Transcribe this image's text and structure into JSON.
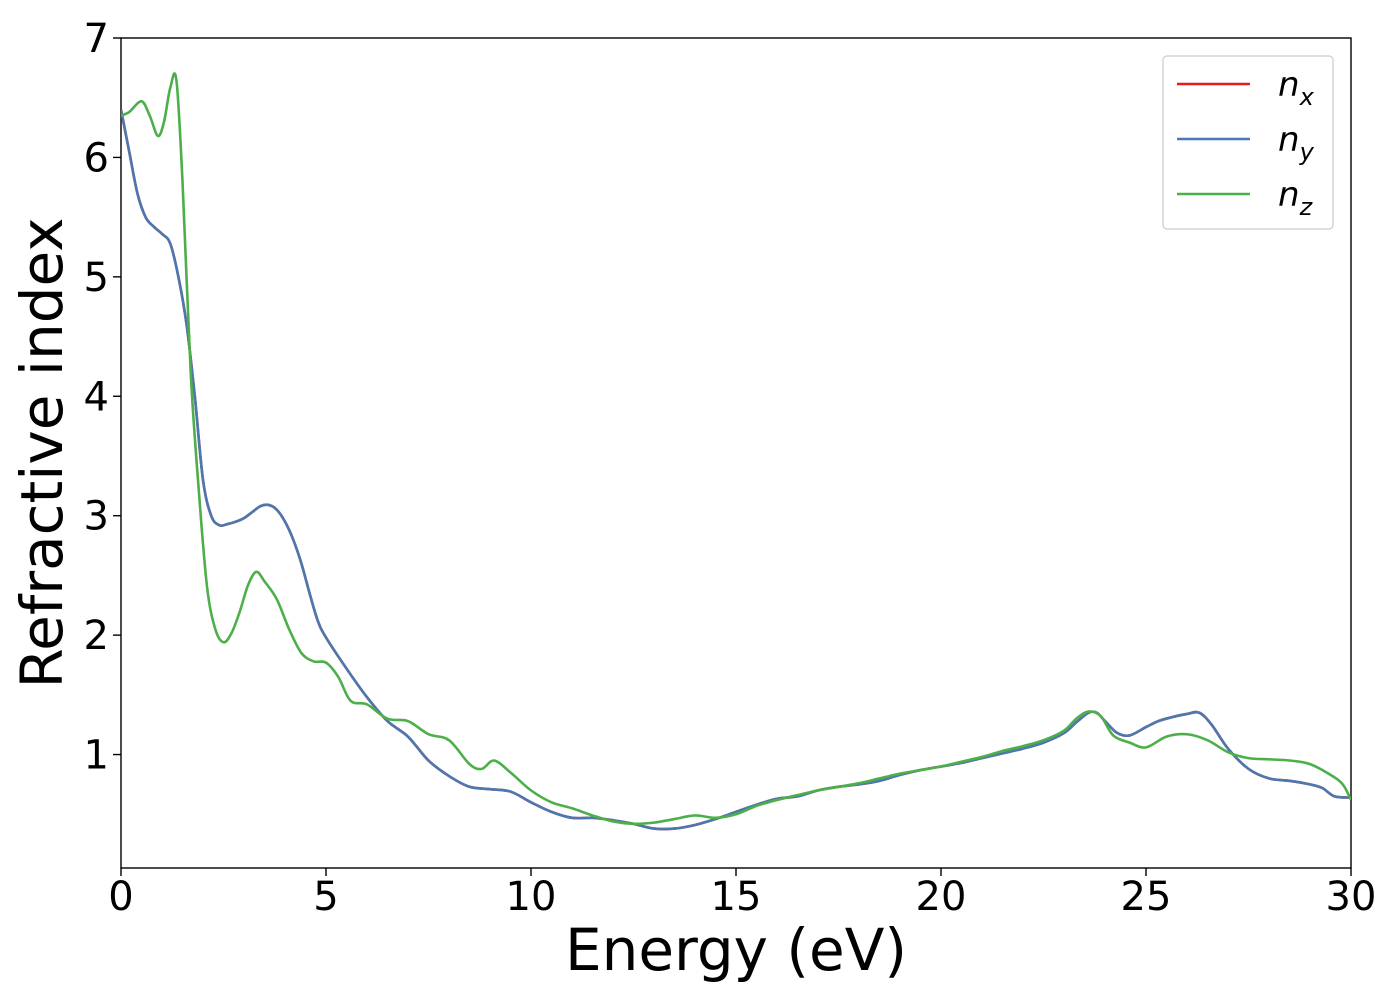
{
  "chart_data": {
    "type": "line",
    "xlabel": "Energy (eV)",
    "ylabel": "Refractive index",
    "xlim": [
      0,
      30
    ],
    "ylim": [
      0.05,
      7
    ],
    "xticks": [
      "0",
      "5",
      "10",
      "15",
      "20",
      "25",
      "30"
    ],
    "yticks": [
      "1",
      "2",
      "3",
      "4",
      "5",
      "6",
      "7"
    ],
    "grid": false,
    "legend_position": "top-right",
    "series": [
      {
        "name": "n_x",
        "label_main": "n",
        "label_sub": "x",
        "color": "#e41a1c",
        "x": [
          0,
          0.2,
          0.4,
          0.6,
          0.8,
          1.0,
          1.2,
          1.4,
          1.6,
          1.8,
          2.0,
          2.2,
          2.4,
          2.6,
          2.8,
          3.0,
          3.2,
          3.4,
          3.6,
          3.8,
          4.0,
          4.2,
          4.4,
          4.6,
          4.8,
          5.0,
          5.5,
          6.0,
          6.5,
          7.0,
          7.5,
          8.0,
          8.5,
          9.0,
          9.5,
          10.0,
          10.5,
          11.0,
          11.5,
          12.0,
          12.5,
          13.0,
          13.5,
          14.0,
          14.5,
          15.0,
          15.5,
          16.0,
          16.5,
          17.0,
          17.5,
          18.0,
          18.5,
          19.0,
          19.5,
          20.0,
          20.5,
          21.0,
          21.5,
          22.0,
          22.5,
          23.0,
          23.3,
          23.6,
          23.8,
          24.0,
          24.3,
          24.6,
          25.0,
          25.3,
          25.6,
          26.0,
          26.3,
          26.6,
          27.0,
          27.5,
          28.0,
          28.5,
          29.0,
          29.3,
          29.6,
          30.0
        ],
        "y": [
          6.4,
          6.05,
          5.7,
          5.5,
          5.42,
          5.36,
          5.28,
          5.0,
          4.6,
          4.0,
          3.3,
          3.0,
          2.92,
          2.93,
          2.95,
          2.98,
          3.03,
          3.08,
          3.09,
          3.05,
          2.95,
          2.8,
          2.6,
          2.35,
          2.12,
          1.98,
          1.72,
          1.48,
          1.28,
          1.15,
          0.95,
          0.82,
          0.73,
          0.71,
          0.69,
          0.6,
          0.52,
          0.47,
          0.47,
          0.45,
          0.42,
          0.38,
          0.38,
          0.41,
          0.46,
          0.52,
          0.58,
          0.63,
          0.65,
          0.7,
          0.73,
          0.75,
          0.78,
          0.83,
          0.87,
          0.9,
          0.93,
          0.97,
          1.01,
          1.05,
          1.1,
          1.18,
          1.27,
          1.35,
          1.35,
          1.28,
          1.18,
          1.16,
          1.23,
          1.28,
          1.31,
          1.34,
          1.35,
          1.25,
          1.05,
          0.88,
          0.8,
          0.78,
          0.75,
          0.72,
          0.65,
          0.64
        ]
      },
      {
        "name": "n_y",
        "label_main": "n",
        "label_sub": "y",
        "color": "#4a78b0",
        "x": [
          0,
          0.2,
          0.4,
          0.6,
          0.8,
          1.0,
          1.2,
          1.4,
          1.6,
          1.8,
          2.0,
          2.2,
          2.4,
          2.6,
          2.8,
          3.0,
          3.2,
          3.4,
          3.6,
          3.8,
          4.0,
          4.2,
          4.4,
          4.6,
          4.8,
          5.0,
          5.5,
          6.0,
          6.5,
          7.0,
          7.5,
          8.0,
          8.5,
          9.0,
          9.5,
          10.0,
          10.5,
          11.0,
          11.5,
          12.0,
          12.5,
          13.0,
          13.5,
          14.0,
          14.5,
          15.0,
          15.5,
          16.0,
          16.5,
          17.0,
          17.5,
          18.0,
          18.5,
          19.0,
          19.5,
          20.0,
          20.5,
          21.0,
          21.5,
          22.0,
          22.5,
          23.0,
          23.3,
          23.6,
          23.8,
          24.0,
          24.3,
          24.6,
          25.0,
          25.3,
          25.6,
          26.0,
          26.3,
          26.6,
          27.0,
          27.5,
          28.0,
          28.5,
          29.0,
          29.3,
          29.6,
          30.0
        ],
        "y": [
          6.4,
          6.05,
          5.7,
          5.5,
          5.42,
          5.36,
          5.28,
          5.0,
          4.6,
          4.0,
          3.3,
          3.0,
          2.92,
          2.93,
          2.95,
          2.98,
          3.03,
          3.08,
          3.09,
          3.05,
          2.95,
          2.8,
          2.6,
          2.35,
          2.12,
          1.98,
          1.72,
          1.48,
          1.28,
          1.15,
          0.95,
          0.82,
          0.73,
          0.71,
          0.69,
          0.6,
          0.52,
          0.47,
          0.47,
          0.45,
          0.42,
          0.38,
          0.38,
          0.41,
          0.46,
          0.52,
          0.58,
          0.63,
          0.65,
          0.7,
          0.73,
          0.75,
          0.78,
          0.83,
          0.87,
          0.9,
          0.93,
          0.97,
          1.01,
          1.05,
          1.1,
          1.18,
          1.27,
          1.35,
          1.35,
          1.28,
          1.18,
          1.16,
          1.23,
          1.28,
          1.31,
          1.34,
          1.35,
          1.25,
          1.05,
          0.88,
          0.8,
          0.78,
          0.75,
          0.72,
          0.65,
          0.64
        ]
      },
      {
        "name": "n_z",
        "label_main": "n",
        "label_sub": "z",
        "color": "#4daf4a",
        "x": [
          0,
          0.2,
          0.5,
          0.7,
          0.9,
          1.05,
          1.2,
          1.35,
          1.5,
          1.7,
          1.9,
          2.1,
          2.3,
          2.5,
          2.7,
          2.9,
          3.1,
          3.3,
          3.5,
          3.8,
          4.1,
          4.4,
          4.7,
          5.0,
          5.3,
          5.6,
          6.0,
          6.5,
          7.0,
          7.5,
          8.0,
          8.5,
          8.8,
          9.1,
          9.5,
          10.0,
          10.5,
          11.0,
          11.5,
          12.0,
          12.5,
          13.0,
          13.5,
          14.0,
          14.5,
          15.0,
          15.5,
          16.0,
          16.5,
          17.0,
          17.5,
          18.0,
          18.5,
          19.0,
          19.5,
          20.0,
          20.5,
          21.0,
          21.5,
          22.0,
          22.5,
          23.0,
          23.3,
          23.6,
          23.9,
          24.2,
          24.6,
          25.0,
          25.5,
          26.0,
          26.5,
          27.0,
          27.5,
          28.0,
          28.5,
          29.0,
          29.5,
          29.8,
          30.0
        ],
        "y": [
          6.35,
          6.38,
          6.47,
          6.35,
          6.18,
          6.3,
          6.58,
          6.65,
          5.8,
          4.2,
          3.2,
          2.4,
          2.05,
          1.94,
          2.02,
          2.2,
          2.42,
          2.53,
          2.45,
          2.3,
          2.05,
          1.85,
          1.78,
          1.77,
          1.65,
          1.45,
          1.42,
          1.3,
          1.28,
          1.17,
          1.12,
          0.92,
          0.88,
          0.95,
          0.85,
          0.7,
          0.6,
          0.55,
          0.49,
          0.44,
          0.42,
          0.43,
          0.46,
          0.49,
          0.47,
          0.5,
          0.57,
          0.62,
          0.66,
          0.7,
          0.73,
          0.76,
          0.8,
          0.84,
          0.87,
          0.9,
          0.94,
          0.98,
          1.03,
          1.07,
          1.12,
          1.2,
          1.3,
          1.36,
          1.32,
          1.16,
          1.1,
          1.06,
          1.15,
          1.17,
          1.12,
          1.02,
          0.97,
          0.96,
          0.95,
          0.92,
          0.83,
          0.75,
          0.62
        ]
      }
    ]
  }
}
